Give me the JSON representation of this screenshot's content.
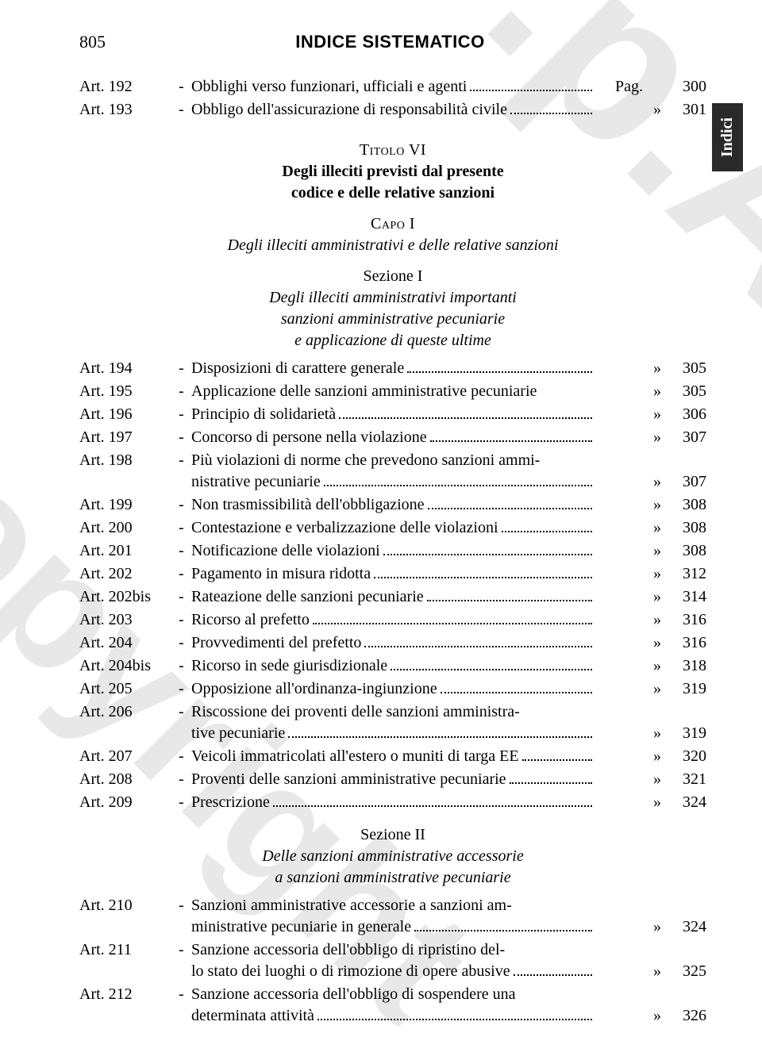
{
  "page_number": "805",
  "header_title": "INDICE SISTEMATICO",
  "tab_label": "Indici",
  "pag_abbrev": "Pag.",
  "sym": "»",
  "colors": {
    "text": "#000000",
    "background": "#ffffff",
    "watermark": "#e8e8e8",
    "tab_bg": "#2a2a2a",
    "tab_text": "#ffffff"
  },
  "intro_entries": [
    {
      "art": "Art. 192",
      "desc": "Obblighi verso funzionari, ufficiali e agenti",
      "show_pag": true,
      "page": "300"
    },
    {
      "art": "Art. 193",
      "desc": "Obbligo dell'assicurazione di responsabilità civile",
      "page": "301"
    }
  ],
  "titolo": {
    "label": "Titolo VI",
    "sub1": "Degli illeciti previsti dal presente",
    "sub2": "codice e delle relative sanzioni"
  },
  "capo": {
    "label": "Capo I",
    "sub": "Degli illeciti amministrativi e delle relative sanzioni"
  },
  "sez1": {
    "label": "Sezione I",
    "sub1": "Degli illeciti amministrativi importanti",
    "sub2": "sanzioni amministrative pecuniarie",
    "sub3": "e applicazione di queste ultime"
  },
  "sez1_entries": [
    {
      "art": "Art. 194",
      "desc": "Disposizioni di carattere generale",
      "page": "305"
    },
    {
      "art": "Art. 195",
      "desc": "Applicazione delle sanzioni amministrative pecuniarie",
      "page": "305",
      "nodots": true
    },
    {
      "art": "Art. 196",
      "desc": "Principio di solidarietà",
      "page": "306"
    },
    {
      "art": "Art. 197",
      "desc": "Concorso di persone nella violazione",
      "page": "307"
    },
    {
      "art": "Art. 198",
      "desc_lines": [
        "Più violazioni di norme che prevedono sanzioni ammi-",
        "nistrative pecuniarie"
      ],
      "page": "307"
    },
    {
      "art": "Art. 199",
      "desc": "Non trasmissibilità dell'obbligazione",
      "page": "308"
    },
    {
      "art": "Art. 200",
      "desc": "Contestazione e verbalizzazione delle violazioni",
      "page": "308"
    },
    {
      "art": "Art. 201",
      "desc": "Notificazione delle violazioni",
      "page": "308"
    },
    {
      "art": "Art. 202",
      "desc": "Pagamento in misura ridotta",
      "page": "312"
    },
    {
      "art": "Art. 202bis",
      "desc": "Rateazione delle sanzioni pecuniarie",
      "page": "314"
    },
    {
      "art": "Art. 203",
      "desc": "Ricorso al prefetto",
      "page": "316"
    },
    {
      "art": "Art. 204",
      "desc": "Provvedimenti del prefetto",
      "page": "316"
    },
    {
      "art": "Art. 204bis",
      "desc": "Ricorso in sede giurisdizionale",
      "page": "318"
    },
    {
      "art": "Art. 205",
      "desc": "Opposizione all'ordinanza-ingiunzione",
      "page": "319"
    },
    {
      "art": "Art. 206",
      "desc_lines": [
        "Riscossione dei proventi delle sanzioni amministra-",
        "tive pecuniarie"
      ],
      "page": "319"
    },
    {
      "art": "Art. 207",
      "desc": "Veicoli immatricolati all'estero o muniti di targa EE",
      "page": "320"
    },
    {
      "art": "Art. 208",
      "desc": "Proventi delle sanzioni amministrative pecuniarie",
      "page": "321"
    },
    {
      "art": "Art. 209",
      "desc": "Prescrizione",
      "page": "324"
    }
  ],
  "sez2": {
    "label": "Sezione II",
    "sub1": "Delle sanzioni amministrative accessorie",
    "sub2": "a sanzioni amministrative pecuniarie"
  },
  "sez2_entries": [
    {
      "art": "Art. 210",
      "desc_lines": [
        "Sanzioni amministrative accessorie a sanzioni am-",
        "ministrative pecuniarie in generale"
      ],
      "page": "324"
    },
    {
      "art": "Art. 211",
      "desc_lines": [
        "Sanzione accessoria dell'obbligo di ripristino del-",
        "lo stato dei luoghi o di rimozione di opere abusive"
      ],
      "page": "325"
    },
    {
      "art": "Art. 212",
      "desc_lines": [
        "Sanzione accessoria dell'obbligo di sospendere una",
        "determinata attività"
      ],
      "page": "326"
    }
  ]
}
